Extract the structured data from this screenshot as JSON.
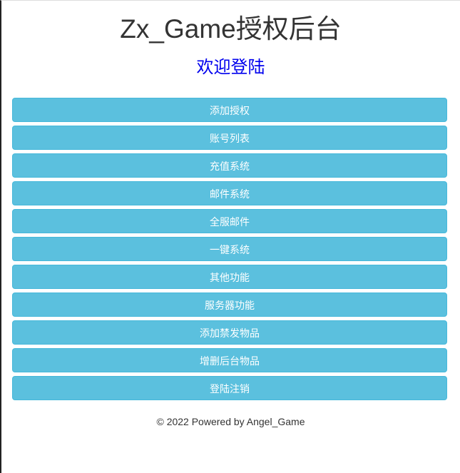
{
  "header": {
    "title": "Zx_Game授权后台",
    "subtitle": "欢迎登陆"
  },
  "menu": {
    "items": [
      {
        "label": "添加授权"
      },
      {
        "label": "账号列表"
      },
      {
        "label": "充值系统"
      },
      {
        "label": "邮件系统"
      },
      {
        "label": "全服邮件"
      },
      {
        "label": "一键系统"
      },
      {
        "label": "其他功能"
      },
      {
        "label": "服务器功能"
      },
      {
        "label": "添加禁发物品"
      },
      {
        "label": "增删后台物品"
      },
      {
        "label": "登陆注销"
      }
    ]
  },
  "footer": {
    "text": "© 2022 Powered by Angel_Game"
  },
  "colors": {
    "button": "#5bc0de",
    "subtitle": "#0000ee"
  }
}
